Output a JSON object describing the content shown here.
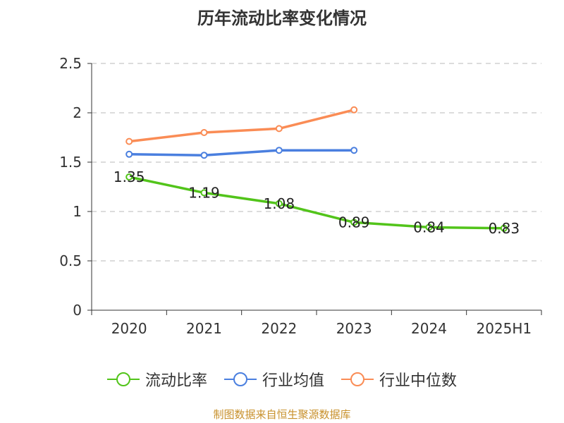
{
  "chart_data": {
    "type": "line",
    "title": "历年流动比率变化情况",
    "categories": [
      "2020",
      "2021",
      "2022",
      "2023",
      "2024",
      "2025H1"
    ],
    "y_ticks": [
      "0",
      "0.5",
      "1",
      "1.5",
      "2",
      "2.5"
    ],
    "ylim": [
      0,
      2.5
    ],
    "grid": true,
    "legend_position": "bottom",
    "series": [
      {
        "name": "流动比率",
        "color": "#52c41a",
        "values": [
          1.35,
          1.19,
          1.08,
          0.89,
          0.84,
          0.83
        ],
        "labels": [
          "1.35",
          "1.19",
          "1.08",
          "0.89",
          "0.84",
          "0.83"
        ],
        "show_labels": true
      },
      {
        "name": "行业均值",
        "color": "#4a7fdf",
        "values": [
          1.58,
          1.57,
          1.62,
          1.62,
          null,
          null
        ],
        "show_labels": false
      },
      {
        "name": "行业中位数",
        "color": "#fa8c55",
        "values": [
          1.71,
          1.8,
          1.84,
          2.03,
          null,
          null
        ],
        "show_labels": false
      }
    ]
  },
  "footer": {
    "source": "制图数据来自恒生聚源数据库"
  }
}
